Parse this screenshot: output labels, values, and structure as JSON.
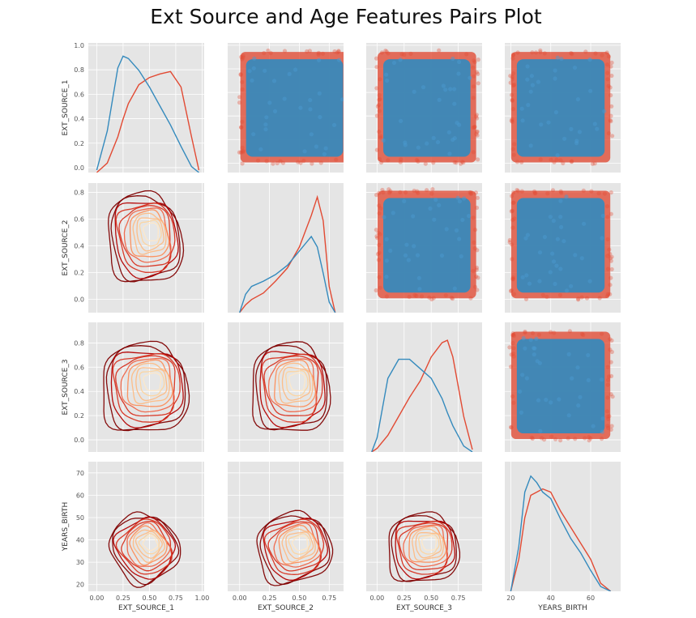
{
  "chart_data": {
    "type": "scatter",
    "title": "Ext Source and Age Features Pairs Plot",
    "variables": [
      "EXT_SOURCE_1",
      "EXT_SOURCE_2",
      "EXT_SOURCE_3",
      "YEARS_BIRTH"
    ],
    "ranges": {
      "EXT_SOURCE_1": [
        -0.08,
        1.02
      ],
      "EXT_SOURCE_2": [
        -0.1,
        0.87
      ],
      "EXT_SOURCE_3": [
        -0.1,
        0.97
      ],
      "YEARS_BIRTH": [
        17,
        75
      ]
    },
    "ticks": {
      "EXT_SOURCE_1": [
        "0.0",
        "0.2",
        "0.4",
        "0.6",
        "0.8",
        "1.0"
      ],
      "EXT_SOURCE_2": [
        "0.0",
        "0.2",
        "0.4",
        "0.6",
        "0.8"
      ],
      "EXT_SOURCE_3": [
        "0.0",
        "0.2",
        "0.4",
        "0.6",
        "0.8"
      ],
      "YEARS_BIRTH": [
        "20",
        "30",
        "40",
        "50",
        "60",
        "70"
      ]
    },
    "xticks": {
      "EXT_SOURCE_1": [
        "0.00",
        "0.25",
        "0.50",
        "0.75",
        "1.00"
      ],
      "EXT_SOURCE_2": [
        "0.00",
        "0.25",
        "0.50",
        "0.75"
      ],
      "EXT_SOURCE_3": [
        "0.00",
        "0.25",
        "0.50",
        "0.75"
      ],
      "YEARS_BIRTH": [
        "20",
        "40",
        "60"
      ]
    },
    "series_colors": {
      "target_0": "#348abd",
      "target_1": "#e24a33"
    },
    "contour_colors": [
      "#7f0000",
      "#b30000",
      "#d7301f",
      "#ef6548",
      "#fc8d59",
      "#fdbb84",
      "#fdd49e",
      "#fee8c8"
    ],
    "diag_kde": {
      "EXT_SOURCE_1": {
        "x": [
          0.0,
          0.1,
          0.2,
          0.25,
          0.3,
          0.4,
          0.5,
          0.6,
          0.7,
          0.8,
          0.9,
          0.97
        ],
        "blue": [
          0.02,
          0.35,
          0.88,
          0.98,
          0.96,
          0.86,
          0.72,
          0.56,
          0.4,
          0.22,
          0.05,
          0.0
        ],
        "red": [
          0.0,
          0.08,
          0.3,
          0.45,
          0.58,
          0.74,
          0.8,
          0.83,
          0.85,
          0.72,
          0.3,
          0.02
        ]
      },
      "EXT_SOURCE_2": {
        "x": [
          0.0,
          0.05,
          0.1,
          0.2,
          0.3,
          0.4,
          0.5,
          0.6,
          0.65,
          0.7,
          0.75,
          0.8
        ],
        "blue": [
          0.0,
          0.14,
          0.2,
          0.24,
          0.29,
          0.36,
          0.47,
          0.58,
          0.5,
          0.3,
          0.08,
          0.0
        ],
        "red": [
          0.0,
          0.06,
          0.1,
          0.15,
          0.24,
          0.34,
          0.5,
          0.74,
          0.88,
          0.7,
          0.2,
          0.0
        ]
      },
      "EXT_SOURCE_3": {
        "x": [
          -0.05,
          0.0,
          0.1,
          0.2,
          0.3,
          0.4,
          0.5,
          0.6,
          0.65,
          0.7,
          0.8,
          0.88
        ],
        "blue": [
          0.0,
          0.12,
          0.62,
          0.78,
          0.78,
          0.7,
          0.62,
          0.45,
          0.33,
          0.22,
          0.05,
          0.0
        ],
        "red": [
          0.0,
          0.03,
          0.14,
          0.3,
          0.46,
          0.6,
          0.8,
          0.92,
          0.94,
          0.8,
          0.3,
          0.02
        ]
      },
      "YEARS_BIRTH": {
        "x": [
          20,
          24,
          27,
          30,
          33,
          36,
          40,
          45,
          50,
          55,
          60,
          65,
          70
        ],
        "blue": [
          0.0,
          0.28,
          0.62,
          0.72,
          0.68,
          0.62,
          0.58,
          0.45,
          0.33,
          0.24,
          0.13,
          0.03,
          0.0
        ],
        "red": [
          0.0,
          0.2,
          0.46,
          0.6,
          0.62,
          0.64,
          0.62,
          0.5,
          0.4,
          0.3,
          0.2,
          0.05,
          0.0
        ]
      }
    },
    "legend": "none",
    "grid": true
  }
}
